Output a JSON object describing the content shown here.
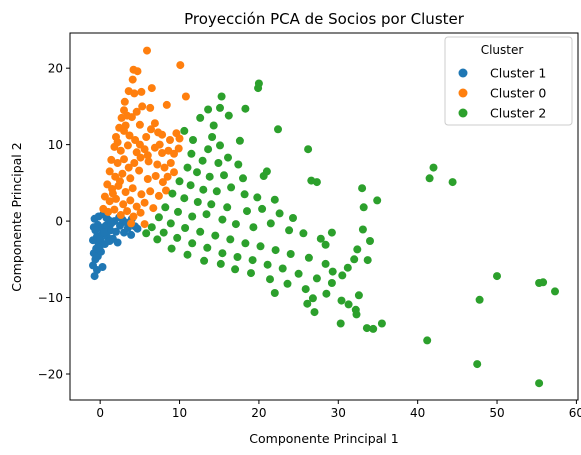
{
  "chart_data": {
    "type": "scatter",
    "title": "Proyección PCA de Socios por Cluster",
    "xlabel": "Componente Principal 1",
    "ylabel": "Componente Principal 2",
    "xlim": [
      -3.8,
      60.2
    ],
    "ylim": [
      -23.4,
      24.6
    ],
    "xticks": [
      0,
      10,
      20,
      30,
      40,
      50,
      60
    ],
    "yticks": [
      -20,
      -10,
      0,
      10,
      20
    ],
    "grid": false,
    "legend": {
      "title": "Cluster",
      "placement": "top-right"
    },
    "series": [
      {
        "name": "Cluster 1",
        "color": "#1f77b4",
        "points": [
          [
            -0.7,
            -7.2
          ],
          [
            -0.9,
            -5.8
          ],
          [
            -0.6,
            -5.0
          ],
          [
            -0.8,
            -4.2
          ],
          [
            -0.5,
            -3.6
          ],
          [
            -0.3,
            -4.6
          ],
          [
            -0.2,
            -3.0
          ],
          [
            0.1,
            -4.0
          ],
          [
            -0.9,
            -2.5
          ],
          [
            -0.4,
            -2.0
          ],
          [
            0.0,
            -2.4
          ],
          [
            0.3,
            -1.6
          ],
          [
            0.6,
            -3.0
          ],
          [
            0.9,
            -2.1
          ],
          [
            1.3,
            -1.2
          ],
          [
            1.6,
            -2.3
          ],
          [
            2.0,
            -1.4
          ],
          [
            2.5,
            -0.6
          ],
          [
            3.0,
            -1.5
          ],
          [
            3.5,
            -0.9
          ],
          [
            3.9,
            -1.8
          ],
          [
            4.4,
            -0.7
          ],
          [
            -0.8,
            -0.8
          ],
          [
            -0.3,
            -0.5
          ],
          [
            0.2,
            -0.9
          ],
          [
            0.7,
            -0.6
          ],
          [
            1.1,
            0.1
          ],
          [
            1.8,
            0.0
          ],
          [
            2.4,
            0.5
          ],
          [
            -0.7,
            0.3
          ],
          [
            -0.2,
            0.6
          ],
          [
            0.4,
            0.9
          ],
          [
            0.8,
            0.4
          ],
          [
            1.4,
            -0.3
          ],
          [
            2.8,
            0.2
          ],
          [
            3.3,
            -0.2
          ],
          [
            4.0,
            0.3
          ],
          [
            4.7,
            -1.0
          ],
          [
            -0.6,
            -1.2
          ],
          [
            0.5,
            -1.5
          ],
          [
            1.2,
            -2.6
          ],
          [
            2.2,
            -2.8
          ],
          [
            -0.1,
            -3.5
          ],
          [
            0.3,
            -6.0
          ],
          [
            -0.4,
            -6.4
          ]
        ]
      },
      {
        "name": "Cluster 0",
        "color": "#ff7f0e",
        "points": [
          [
            5.9,
            22.3
          ],
          [
            10.1,
            20.4
          ],
          [
            4.2,
            19.8
          ],
          [
            4.7,
            19.6
          ],
          [
            4.1,
            18.5
          ],
          [
            3.6,
            17.0
          ],
          [
            4.3,
            16.7
          ],
          [
            5.2,
            16.9
          ],
          [
            6.5,
            17.4
          ],
          [
            10.8,
            16.3
          ],
          [
            3.1,
            15.6
          ],
          [
            3.0,
            14.5
          ],
          [
            5.3,
            15.0
          ],
          [
            6.3,
            14.8
          ],
          [
            8.4,
            15.2
          ],
          [
            2.7,
            13.5
          ],
          [
            3.4,
            13.8
          ],
          [
            4.6,
            14.3
          ],
          [
            2.4,
            12.2
          ],
          [
            3.2,
            12.5
          ],
          [
            5.0,
            12.6
          ],
          [
            6.4,
            12.0
          ],
          [
            7.3,
            11.6
          ],
          [
            2.0,
            11.0
          ],
          [
            3.7,
            11.2
          ],
          [
            4.4,
            10.6
          ],
          [
            7.8,
            11.3
          ],
          [
            10.0,
            10.8
          ],
          [
            1.8,
            9.7
          ],
          [
            2.6,
            9.2
          ],
          [
            3.5,
            9.9
          ],
          [
            5.6,
            9.4
          ],
          [
            6.9,
            9.6
          ],
          [
            7.8,
            8.9
          ],
          [
            8.6,
            9.2
          ],
          [
            9.3,
            8.8
          ],
          [
            9.9,
            9.5
          ],
          [
            1.4,
            8.0
          ],
          [
            2.2,
            7.6
          ],
          [
            3.0,
            8.1
          ],
          [
            4.3,
            7.6
          ],
          [
            5.1,
            8.3
          ],
          [
            6.1,
            7.8
          ],
          [
            7.2,
            7.4
          ],
          [
            8.1,
            7.0
          ],
          [
            8.9,
            7.6
          ],
          [
            9.3,
            6.4
          ],
          [
            1.2,
            6.5
          ],
          [
            1.9,
            5.8
          ],
          [
            2.8,
            6.2
          ],
          [
            3.8,
            5.6
          ],
          [
            4.9,
            6.6
          ],
          [
            6.0,
            5.5
          ],
          [
            7.0,
            5.9
          ],
          [
            7.9,
            5.1
          ],
          [
            8.5,
            5.8
          ],
          [
            0.9,
            4.8
          ],
          [
            1.5,
            4.2
          ],
          [
            2.3,
            4.6
          ],
          [
            3.2,
            3.8
          ],
          [
            4.1,
            4.3
          ],
          [
            5.2,
            3.5
          ],
          [
            6.3,
            3.9
          ],
          [
            7.4,
            3.3
          ],
          [
            8.3,
            4.0
          ],
          [
            0.6,
            3.2
          ],
          [
            1.2,
            2.6
          ],
          [
            2.0,
            2.9
          ],
          [
            2.9,
            2.2
          ],
          [
            3.8,
            2.7
          ],
          [
            4.6,
            1.9
          ],
          [
            5.6,
            2.4
          ],
          [
            6.7,
            1.7
          ],
          [
            0.4,
            1.6
          ],
          [
            1.0,
            1.2
          ],
          [
            1.8,
            1.5
          ],
          [
            2.6,
            0.8
          ],
          [
            3.4,
            1.3
          ],
          [
            4.2,
            0.6
          ],
          [
            5.1,
            1.1
          ],
          [
            3.9,
            -0.3
          ],
          [
            5.6,
            -0.4
          ],
          [
            1.6,
            3.6
          ],
          [
            2.5,
            5.2
          ],
          [
            3.6,
            7.0
          ],
          [
            4.6,
            9.0
          ],
          [
            5.8,
            11.0
          ],
          [
            6.9,
            12.8
          ],
          [
            2.2,
            10.3
          ],
          [
            3.0,
            11.8
          ],
          [
            4.0,
            13.6
          ],
          [
            5.0,
            10.0
          ],
          [
            6.0,
            8.6
          ],
          [
            7.5,
            10.0
          ],
          [
            8.8,
            10.6
          ],
          [
            9.6,
            11.5
          ]
        ]
      },
      {
        "name": "Cluster 2",
        "color": "#2ca02c",
        "points": [
          [
            20.0,
            18.0
          ],
          [
            19.9,
            17.4
          ],
          [
            15.3,
            16.3
          ],
          [
            15.1,
            14.8
          ],
          [
            18.3,
            14.7
          ],
          [
            12.6,
            13.5
          ],
          [
            13.6,
            14.6
          ],
          [
            16.2,
            13.8
          ],
          [
            14.3,
            12.5
          ],
          [
            22.4,
            12.0
          ],
          [
            10.6,
            11.8
          ],
          [
            11.7,
            10.6
          ],
          [
            14.1,
            11.0
          ],
          [
            17.6,
            10.5
          ],
          [
            26.2,
            9.4
          ],
          [
            13.6,
            9.4
          ],
          [
            15.1,
            9.9
          ],
          [
            11.5,
            8.8
          ],
          [
            12.9,
            7.9
          ],
          [
            14.9,
            7.6
          ],
          [
            16.1,
            8.3
          ],
          [
            17.4,
            7.4
          ],
          [
            21.0,
            6.5
          ],
          [
            20.6,
            5.9
          ],
          [
            11.0,
            7.0
          ],
          [
            12.2,
            6.4
          ],
          [
            13.8,
            5.8
          ],
          [
            15.6,
            6.0
          ],
          [
            18.0,
            5.6
          ],
          [
            26.6,
            5.3
          ],
          [
            27.3,
            5.1
          ],
          [
            10.0,
            5.2
          ],
          [
            11.4,
            4.7
          ],
          [
            13.0,
            4.1
          ],
          [
            14.7,
            3.9
          ],
          [
            16.5,
            4.4
          ],
          [
            18.2,
            3.5
          ],
          [
            19.8,
            3.1
          ],
          [
            22.0,
            2.8
          ],
          [
            9.1,
            3.6
          ],
          [
            10.6,
            3.0
          ],
          [
            12.3,
            2.5
          ],
          [
            14.0,
            2.2
          ],
          [
            16.0,
            1.8
          ],
          [
            18.5,
            1.3
          ],
          [
            20.4,
            1.6
          ],
          [
            22.6,
            1.0
          ],
          [
            24.3,
            0.4
          ],
          [
            8.2,
            1.8
          ],
          [
            9.8,
            1.2
          ],
          [
            11.6,
            0.6
          ],
          [
            13.4,
            0.9
          ],
          [
            15.4,
            0.2
          ],
          [
            17.1,
            -0.4
          ],
          [
            19.3,
            -0.8
          ],
          [
            21.5,
            -0.3
          ],
          [
            23.8,
            -1.2
          ],
          [
            25.6,
            -1.6
          ],
          [
            27.8,
            -2.3
          ],
          [
            7.4,
            0.5
          ],
          [
            8.9,
            -0.3
          ],
          [
            10.7,
            -0.9
          ],
          [
            12.6,
            -1.4
          ],
          [
            14.5,
            -1.9
          ],
          [
            16.4,
            -2.4
          ],
          [
            18.3,
            -2.9
          ],
          [
            20.2,
            -3.3
          ],
          [
            22.1,
            -3.8
          ],
          [
            24.0,
            -4.3
          ],
          [
            26.3,
            -4.8
          ],
          [
            28.4,
            -5.6
          ],
          [
            6.5,
            -0.8
          ],
          [
            8.0,
            -1.5
          ],
          [
            9.7,
            -2.2
          ],
          [
            11.6,
            -2.9
          ],
          [
            13.5,
            -3.5
          ],
          [
            15.4,
            -4.2
          ],
          [
            17.3,
            -4.7
          ],
          [
            19.2,
            -5.1
          ],
          [
            21.1,
            -5.7
          ],
          [
            23.0,
            -6.2
          ],
          [
            25.0,
            -6.9
          ],
          [
            27.3,
            -7.5
          ],
          [
            29.2,
            -8.1
          ],
          [
            5.8,
            -1.6
          ],
          [
            7.2,
            -2.4
          ],
          [
            9.0,
            -3.6
          ],
          [
            11.0,
            -4.4
          ],
          [
            13.1,
            -5.2
          ],
          [
            15.2,
            -5.6
          ],
          [
            17.0,
            -6.3
          ],
          [
            19.0,
            -6.8
          ],
          [
            21.4,
            -7.6
          ],
          [
            23.6,
            -8.2
          ],
          [
            25.9,
            -8.9
          ],
          [
            28.5,
            -9.5
          ],
          [
            22.0,
            -9.4
          ],
          [
            26.8,
            -10.1
          ],
          [
            30.4,
            -10.4
          ],
          [
            26.1,
            -10.8
          ],
          [
            31.3,
            -10.9
          ],
          [
            32.2,
            -11.6
          ],
          [
            32.6,
            -9.7
          ],
          [
            27.0,
            -11.9
          ],
          [
            32.3,
            -12.2
          ],
          [
            30.3,
            -13.4
          ],
          [
            33.6,
            -14.0
          ],
          [
            34.4,
            -14.1
          ],
          [
            35.5,
            -13.4
          ],
          [
            33.0,
            4.3
          ],
          [
            33.2,
            1.8
          ],
          [
            34.9,
            2.7
          ],
          [
            33.1,
            -1.1
          ],
          [
            34.0,
            -2.6
          ],
          [
            32.4,
            -3.7
          ],
          [
            32.0,
            -5.0
          ],
          [
            31.2,
            -6.1
          ],
          [
            33.7,
            -5.1
          ],
          [
            30.5,
            -7.1
          ],
          [
            29.3,
            -6.6
          ],
          [
            29.2,
            -1.5
          ],
          [
            28.4,
            -3.1
          ],
          [
            41.2,
            -15.6
          ],
          [
            47.5,
            -18.7
          ],
          [
            55.3,
            -21.2
          ],
          [
            42.0,
            7.0
          ],
          [
            41.5,
            5.6
          ],
          [
            44.4,
            5.1
          ],
          [
            50.0,
            -7.2
          ],
          [
            55.3,
            -8.1
          ],
          [
            55.8,
            -8.0
          ],
          [
            57.3,
            -9.2
          ],
          [
            47.8,
            -10.3
          ]
        ]
      }
    ]
  }
}
